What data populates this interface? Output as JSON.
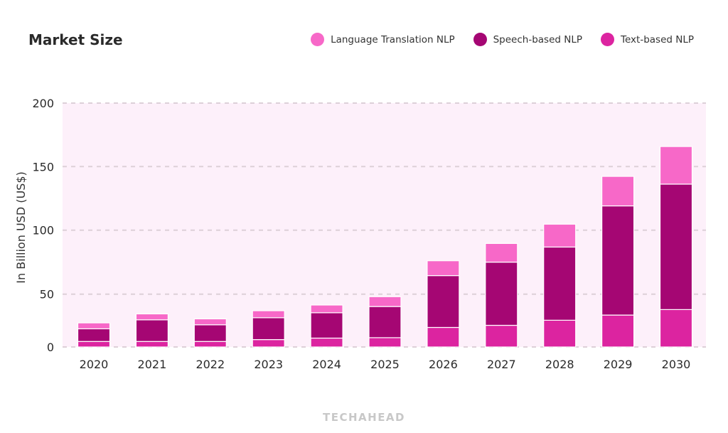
{
  "chart_data": {
    "type": "bar",
    "stacked": true,
    "title": "Market Size",
    "ylabel": "In Billion USD (US$)",
    "xlabel": "",
    "ylim": [
      0,
      200
    ],
    "yticks": [
      0,
      50,
      100,
      150,
      200
    ],
    "grid": true,
    "legend_position": "top-right",
    "categories": [
      "2020",
      "2021",
      "2022",
      "2023",
      "2024",
      "2025",
      "2026",
      "2027",
      "2028",
      "2029",
      "2030"
    ],
    "series": [
      {
        "name": "Text-based NLP",
        "color": "#dc24a0",
        "values": [
          5.2,
          5.2,
          5.2,
          7.0,
          8.4,
          8.8,
          18.5,
          20.5,
          25.3,
          30.2,
          35.4
        ]
      },
      {
        "name": "Speech-based NLP",
        "color": "#a50673",
        "values": [
          12.0,
          20.5,
          15.8,
          20.7,
          24.0,
          29.5,
          46.0,
          54.5,
          61.5,
          88.9,
          100.8
        ]
      },
      {
        "name": "Language Translation NLP",
        "color": "#f768c8",
        "values": [
          5.6,
          5.6,
          5.6,
          6.6,
          7.3,
          9.3,
          11.6,
          14.6,
          17.9,
          23.2,
          29.6
        ]
      }
    ],
    "legend_order": [
      "Language Translation NLP",
      "Speech-based NLP",
      "Text-based NLP"
    ],
    "plot_background": "#fdf0fa"
  },
  "logo": "TECHAHEAD"
}
